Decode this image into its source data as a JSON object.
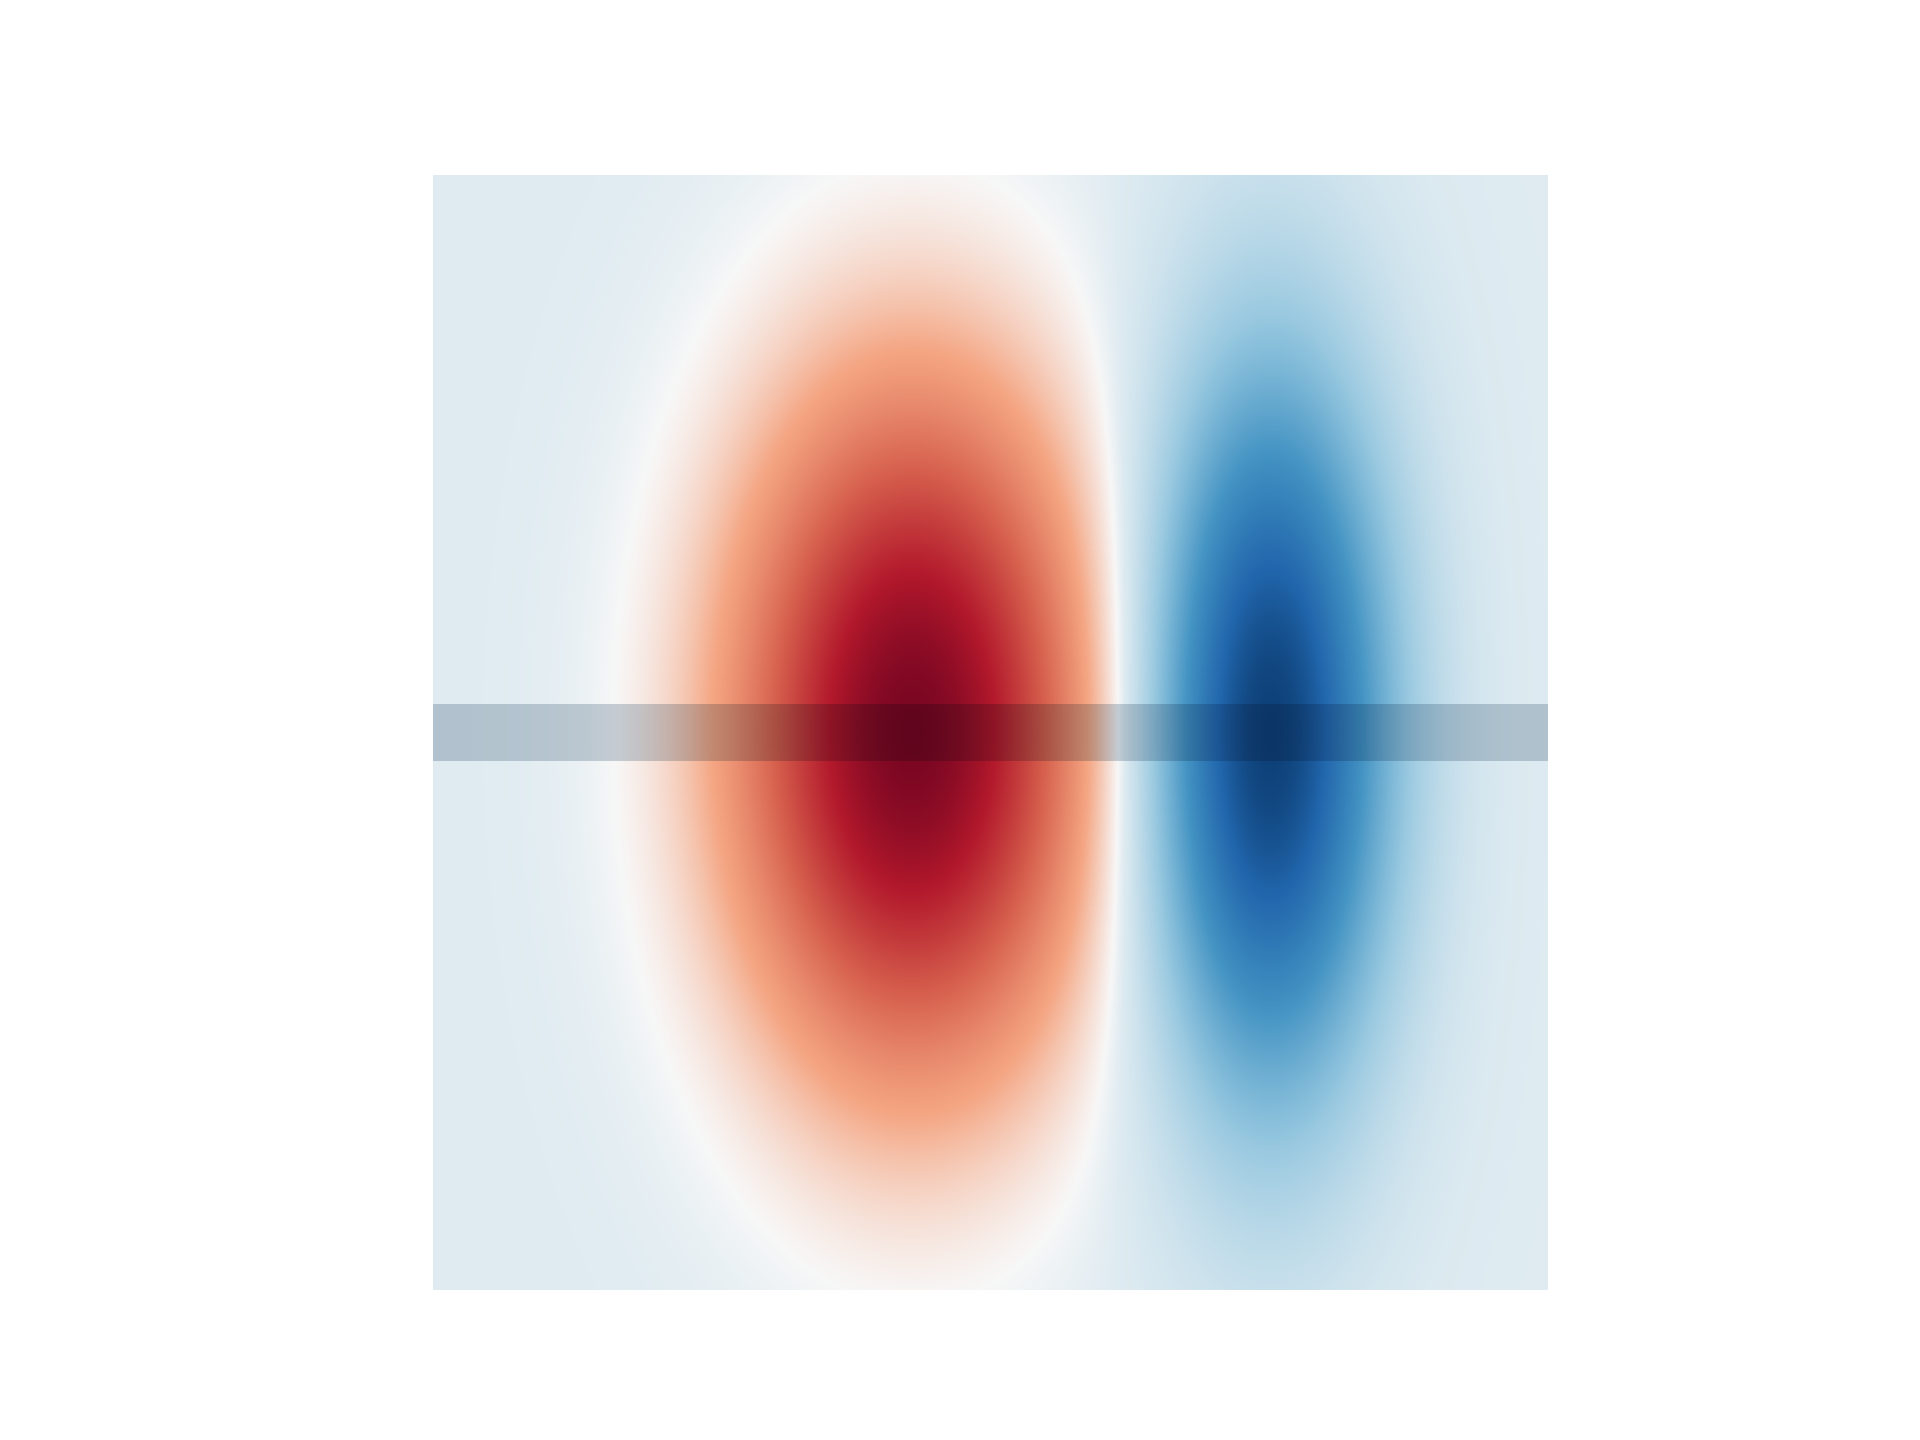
{
  "chart_data": {
    "type": "heatmap",
    "title": "",
    "xlabel": "",
    "ylabel": "",
    "colormap": "RdBu_r",
    "colorbar": false,
    "axes_visible": false,
    "x_range": [
      -1,
      1
    ],
    "y_range": [
      -1,
      1
    ],
    "color_range": [
      -1,
      1
    ],
    "background_value": 0.06,
    "features": [
      {
        "name": "positive-lobe",
        "sign": "positive",
        "peak_value": 1.0,
        "center": [
          -0.14,
          0.0
        ],
        "sigma_x": 0.22,
        "sigma_y": 0.42
      },
      {
        "name": "negative-lobe",
        "sign": "negative",
        "peak_value": -1.0,
        "center": [
          0.5,
          0.0
        ],
        "sigma_x": 0.15,
        "sigma_y": 0.45
      }
    ],
    "highlight_band": {
      "y_center": 0.0,
      "half_width": 0.052,
      "color": "#cbd3da"
    }
  }
}
